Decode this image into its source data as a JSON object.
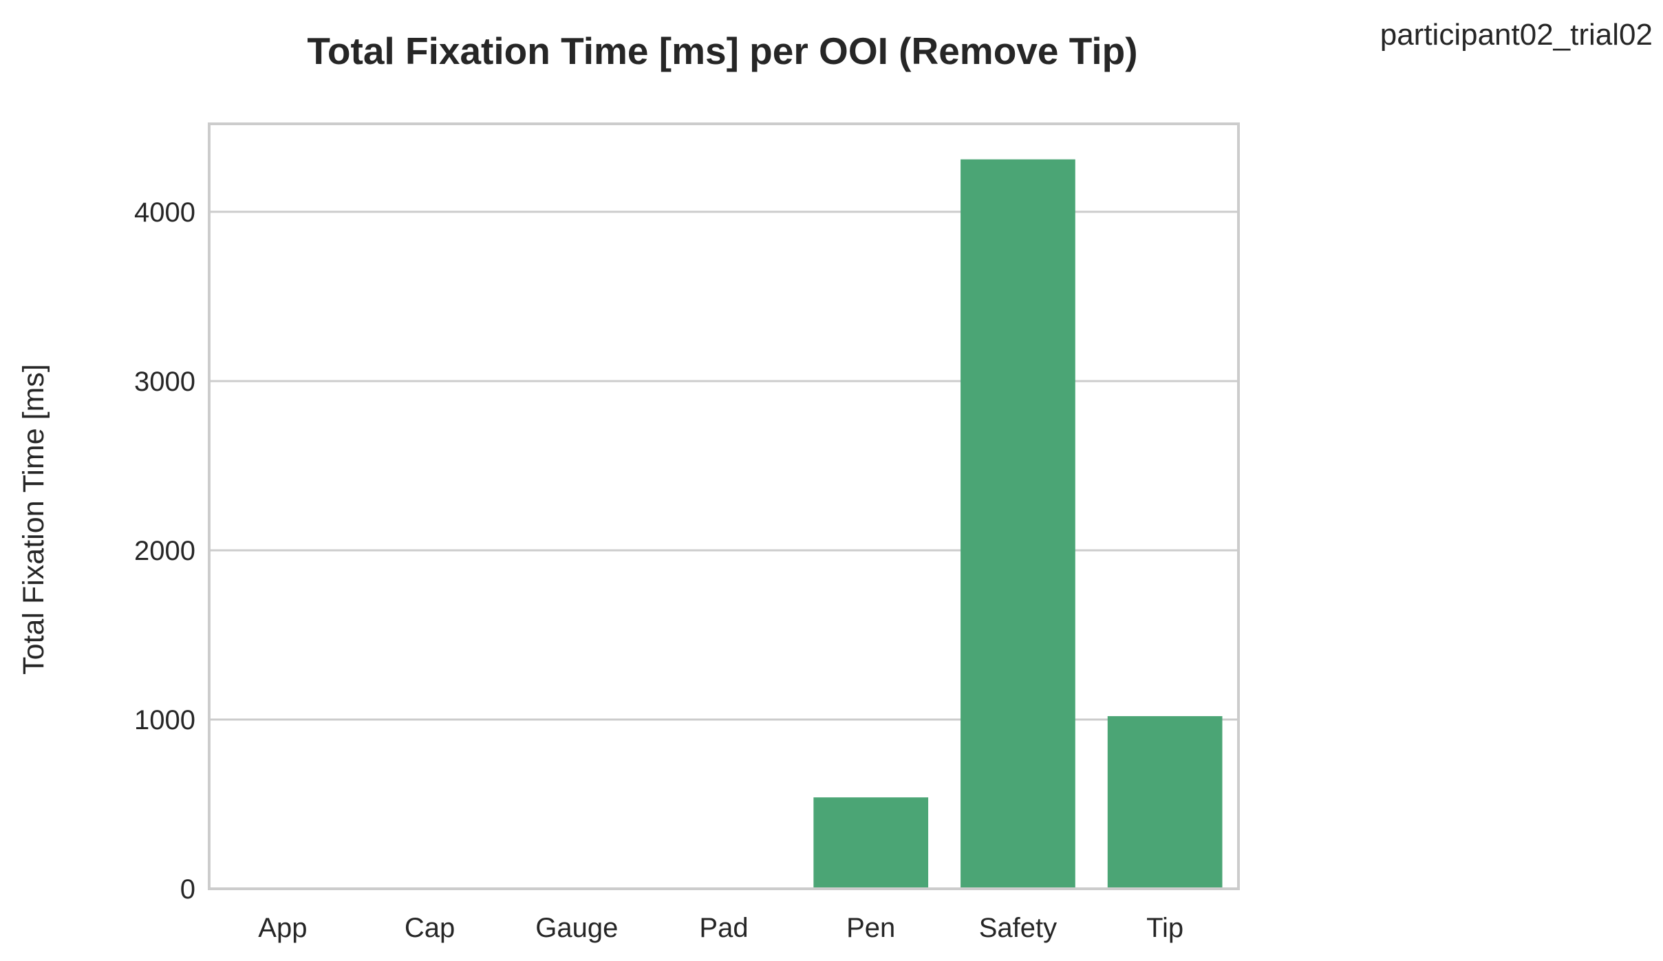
{
  "chart_data": {
    "type": "bar",
    "title": "Total Fixation Time [ms] per OOI (Remove Tip)",
    "annotation": "participant02_trial02",
    "xlabel": "",
    "ylabel": "Total Fixation Time [ms]",
    "categories": [
      "App",
      "Cap",
      "Gauge",
      "Pad",
      "Pen",
      "Safety",
      "Tip"
    ],
    "values": [
      0,
      0,
      0,
      0,
      540,
      4310,
      1020
    ],
    "ylim": [
      0,
      4520
    ],
    "yticks": [
      0,
      1000,
      2000,
      3000,
      4000
    ],
    "ytick_labels": [
      "0",
      "1000",
      "2000",
      "3000",
      "4000"
    ],
    "grid": "horizontal",
    "bar_color": "#4ba575",
    "grid_color": "#cccccc",
    "frame_color": "#cccccc"
  }
}
